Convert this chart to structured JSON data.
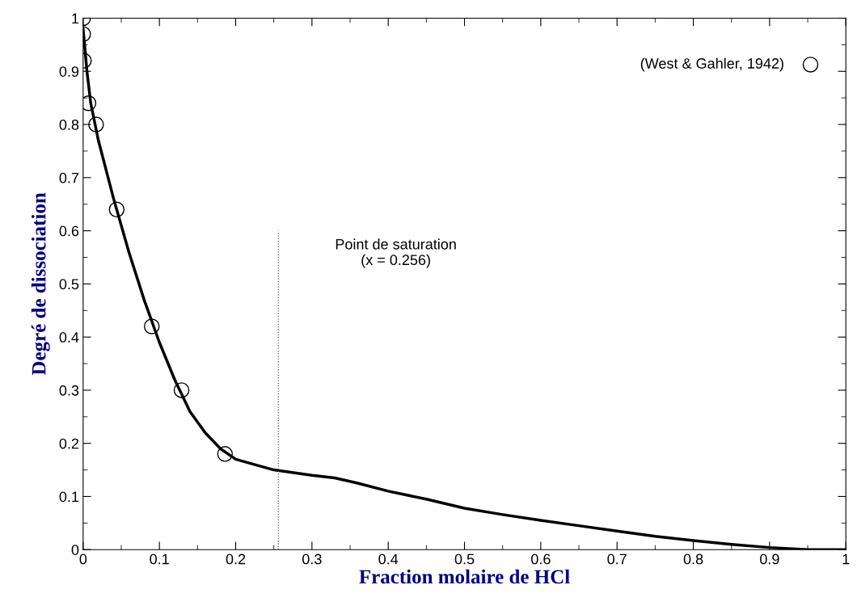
{
  "chart_data": {
    "type": "line",
    "xlabel": "Fraction molaire de HCl",
    "ylabel": "Degré de dissociation",
    "xlim": [
      0,
      1
    ],
    "ylim": [
      0,
      1
    ],
    "xticks": [
      0,
      0.1,
      0.2,
      0.3,
      0.4,
      0.5,
      0.6,
      0.7,
      0.8,
      0.9,
      1
    ],
    "yticks": [
      0,
      0.1,
      0.2,
      0.3,
      0.4,
      0.5,
      0.6,
      0.7,
      0.8,
      0.9,
      1
    ],
    "grid": false,
    "legend": "top right",
    "annotations": [
      "Point de saturation\n(x = 0.256)"
    ],
    "series": [
      {
        "color": "#000000",
        "marker": "none",
        "line_style": "solid",
        "x": [
          0,
          0.005,
          0.01,
          0.02,
          0.04,
          0.06,
          0.08,
          0.1,
          0.12,
          0.14,
          0.16,
          0.18,
          0.2,
          0.25,
          0.3,
          0.33,
          0.36,
          0.4,
          0.45,
          0.5,
          0.55,
          0.6,
          0.65,
          0.7,
          0.75,
          0.8,
          0.85,
          0.9,
          0.95,
          1.0
        ],
        "values": [
          0.98,
          0.9,
          0.84,
          0.77,
          0.66,
          0.56,
          0.47,
          0.39,
          0.32,
          0.26,
          0.22,
          0.19,
          0.17,
          0.15,
          0.14,
          0.135,
          0.125,
          0.11,
          0.095,
          0.078,
          0.066,
          0.055,
          0.045,
          0.035,
          0.025,
          0.017,
          0.01,
          0.004,
          0.0,
          0.0
        ]
      },
      {
        "color": "#555555",
        "marker": "none",
        "line_style": "dotted",
        "x": [
          0.256,
          0.256
        ],
        "values": [
          0,
          0.6
        ]
      },
      {
        "type": "scatter",
        "name": "(West & Gahler, 1942)",
        "color": "#000000",
        "marker": "circle",
        "x": [
          0,
          0,
          0.001,
          0.007,
          0.017,
          0.044,
          0.09,
          0.129,
          0.186
        ],
        "values": [
          1.0,
          0.97,
          0.92,
          0.84,
          0.8,
          0.64,
          0.42,
          0.3,
          0.18
        ]
      }
    ]
  }
}
